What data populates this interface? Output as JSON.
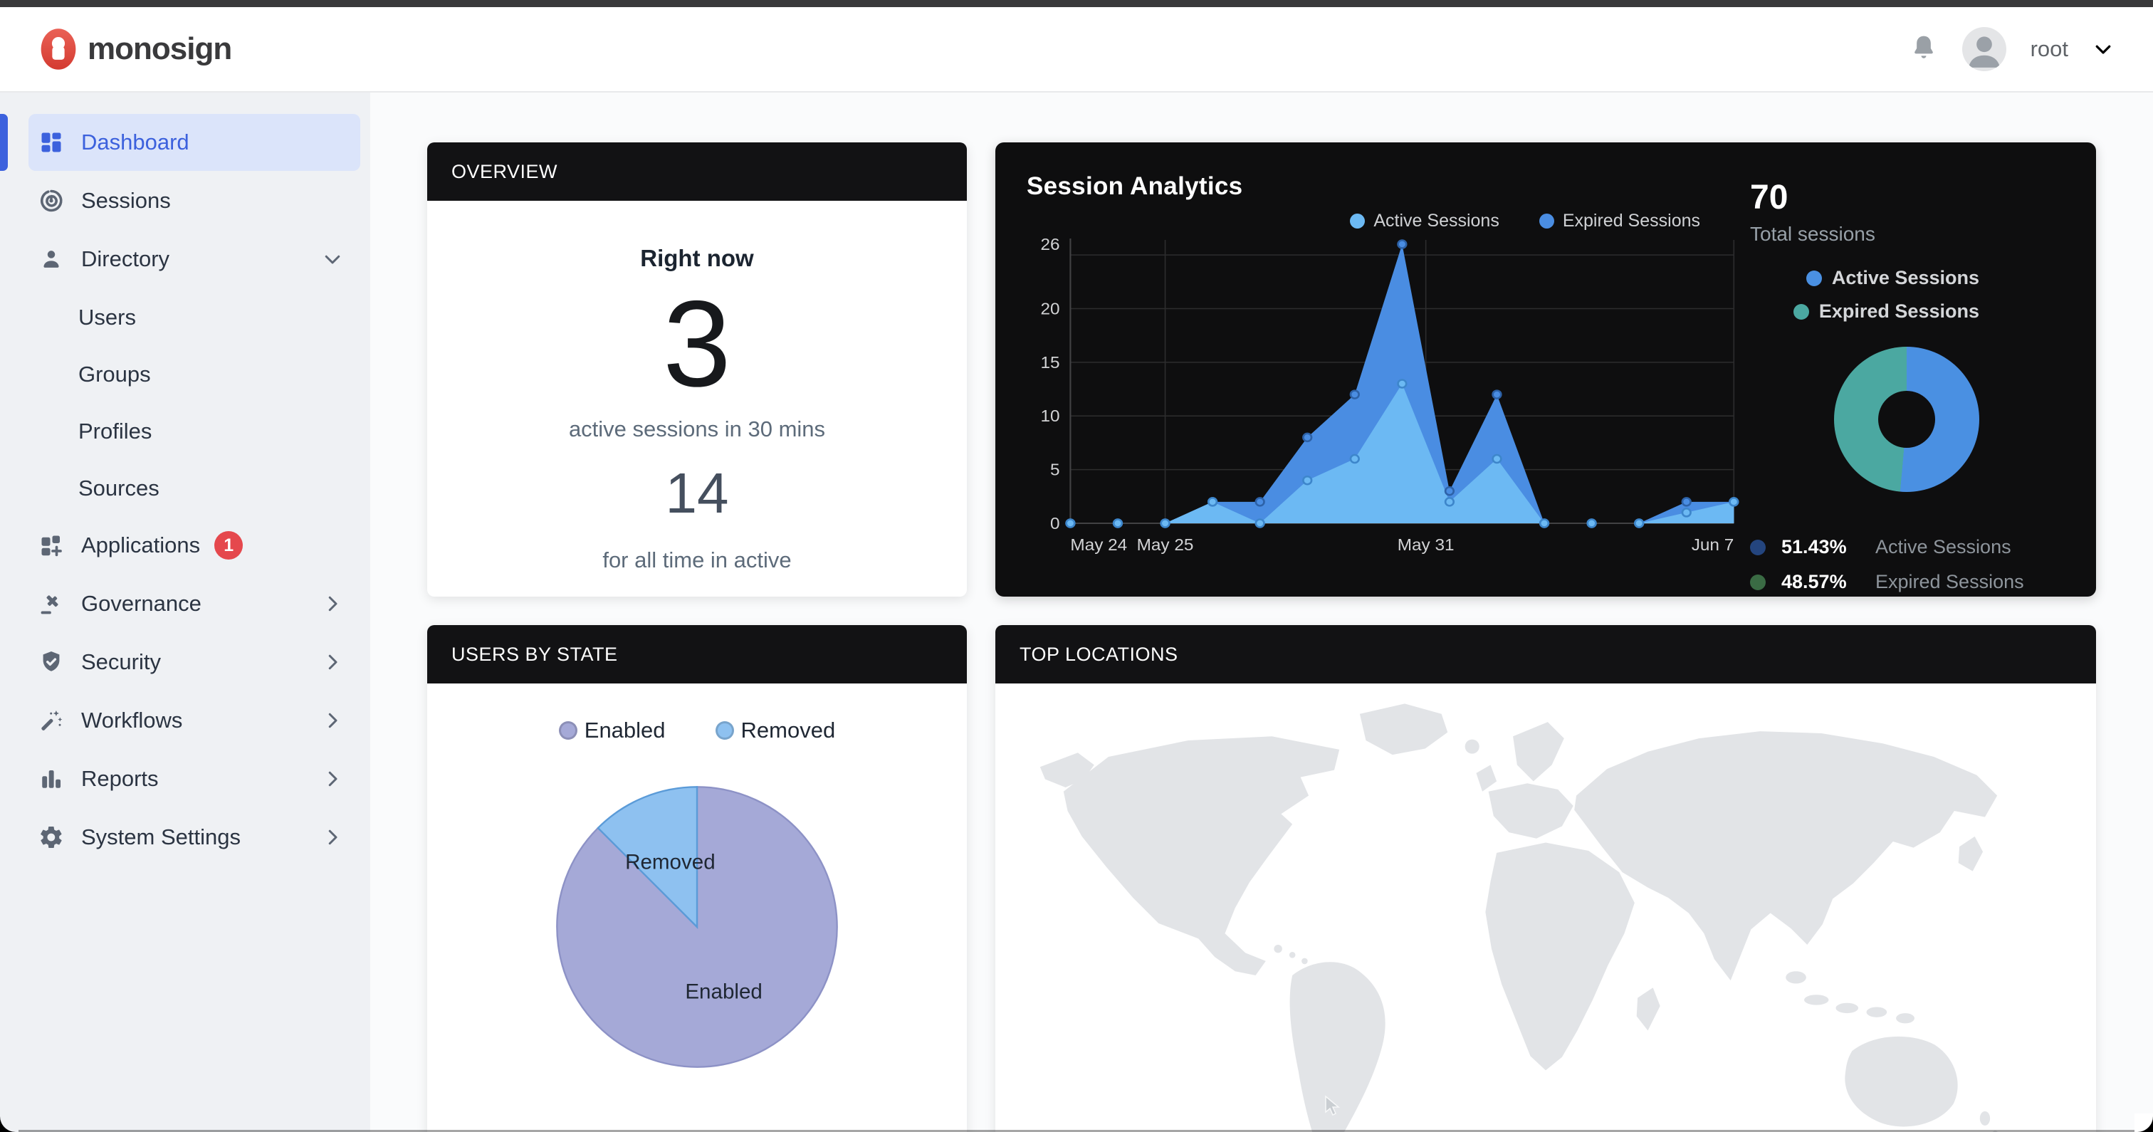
{
  "header": {
    "brand": "monosign",
    "user": "root",
    "icons": [
      "bell-icon",
      "avatar",
      "chevron-down-icon"
    ]
  },
  "sidebar": {
    "items": [
      {
        "label": "Dashboard",
        "icon": "dashboard-icon",
        "active": true
      },
      {
        "label": "Sessions",
        "icon": "sessions-icon"
      },
      {
        "label": "Directory",
        "icon": "person-icon",
        "expanded": true,
        "children": [
          "Users",
          "Groups",
          "Profiles",
          "Sources"
        ]
      },
      {
        "label": "Applications",
        "icon": "apps-grid-plus-icon",
        "badge": "1"
      },
      {
        "label": "Governance",
        "icon": "gavel-icon",
        "chevron": "right"
      },
      {
        "label": "Security",
        "icon": "shield-check-icon",
        "chevron": "right"
      },
      {
        "label": "Workflows",
        "icon": "magic-wand-icon",
        "chevron": "right"
      },
      {
        "label": "Reports",
        "icon": "bar-chart-icon",
        "chevron": "right"
      },
      {
        "label": "System Settings",
        "icon": "gear-icon",
        "chevron": "right"
      }
    ]
  },
  "overview": {
    "title": "OVERVIEW",
    "right_now_label": "Right now",
    "right_now_value": "3",
    "right_now_caption": "active sessions in 30 mins",
    "alltime_value": "14",
    "alltime_caption": "for all time in active"
  },
  "session_analytics": {
    "title": "Session Analytics"
  },
  "users_by_state": {
    "title": "USERS BY STATE"
  },
  "top_locations": {
    "title": "TOP LOCATIONS"
  },
  "chart_data": [
    {
      "type": "area",
      "title": "Session Analytics",
      "x_range": [
        "May 24",
        "Jun 7"
      ],
      "x_tick_labels": [
        {
          "text": "May 24",
          "index": 0
        },
        {
          "text": "May 25",
          "index": 2
        },
        {
          "text": "May 31",
          "index": 7.5
        },
        {
          "text": "Jun 7",
          "index": 14
        }
      ],
      "y_ticks": [
        0,
        5,
        10,
        15,
        20,
        26
      ],
      "grid_values": [
        5,
        10,
        15,
        20,
        25
      ],
      "ylim": [
        0,
        26
      ],
      "legend_position": "top-right",
      "series": [
        {
          "name": "Active Sessions",
          "color": "#6cb9f3",
          "point_stroke": "#3d86cb",
          "values": [
            0,
            0,
            0,
            2,
            0,
            4,
            6,
            13,
            2,
            6,
            0,
            0,
            0,
            1,
            2
          ]
        },
        {
          "name": "Expired Sessions",
          "color": "#4a8de2",
          "point_stroke": "#2d62a8",
          "values": [
            0,
            0,
            0,
            2,
            2,
            8,
            12,
            26,
            3,
            12,
            0,
            0,
            0,
            2,
            2
          ]
        }
      ]
    },
    {
      "type": "pie",
      "subtype": "donut",
      "total": "70",
      "total_label": "Total sessions",
      "legend_position": "right",
      "slices": [
        {
          "label": "Active Sessions",
          "pct": 51.43,
          "pct_label": "51.43%",
          "color": "#4a90e2",
          "muted_color": "#24457e"
        },
        {
          "label": "Expired Sessions",
          "pct": 48.57,
          "pct_label": "48.57%",
          "color": "#4ba8a1",
          "muted_color": "#3a6b44"
        }
      ]
    },
    {
      "type": "pie",
      "title": "Users by State",
      "legend_position": "top",
      "slices": [
        {
          "label": "Enabled",
          "value": 14,
          "pct": 87.5,
          "color": "#a5a9d7",
          "border": "#8d92c6"
        },
        {
          "label": "Removed",
          "value": 2,
          "pct": 12.5,
          "color": "#8ec1f0",
          "border": "#5b9bd8"
        }
      ]
    }
  ]
}
